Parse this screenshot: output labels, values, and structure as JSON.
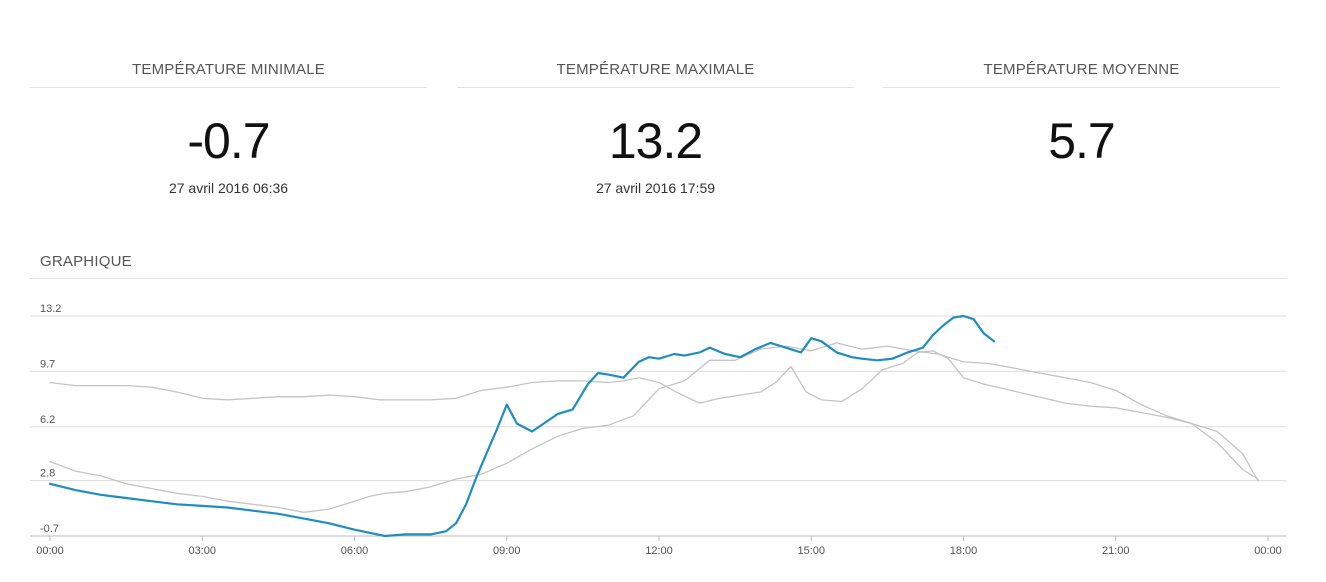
{
  "stats": [
    {
      "label": "TEMPÉRATURE MINIMALE",
      "value": "-0.7",
      "date": "27 avril 2016 06:36"
    },
    {
      "label": "TEMPÉRATURE MAXIMALE",
      "value": "13.2",
      "date": "27 avril 2016 17:59"
    },
    {
      "label": "TEMPÉRATURE MOYENNE",
      "value": "5.7",
      "date": ""
    }
  ],
  "section": {
    "title": "GRAPHIQUE"
  },
  "colors": {
    "today": "#1f8dc1",
    "comparison": "#c4c4c4",
    "grid": "#dcdcdc",
    "axis": "#bbbbbb"
  },
  "chart_data": {
    "type": "line",
    "xlabel": "",
    "ylabel": "",
    "x_unit": "hours",
    "x_range": [
      0,
      24
    ],
    "ylim": [
      -0.7,
      13.2
    ],
    "y_ticks": [
      "13.2",
      "9.7",
      "6.2",
      "2.8",
      "-0.7"
    ],
    "y_tick_values": [
      13.2,
      9.7,
      6.2,
      2.8,
      -0.7
    ],
    "x_ticks": [
      "00:00",
      "03:00",
      "06:00",
      "09:00",
      "12:00",
      "15:00",
      "18:00",
      "21:00",
      "00:00"
    ],
    "x_tick_values": [
      0,
      3,
      6,
      9,
      12,
      15,
      18,
      21,
      24
    ],
    "grid": true,
    "legend": "none",
    "series": [
      {
        "x": [
          0,
          0.5,
          1,
          1.5,
          2,
          2.5,
          3,
          3.5,
          4,
          4.5,
          5,
          5.5,
          6,
          6.3,
          6.6,
          7,
          7.5,
          7.8,
          8,
          8.2,
          8.4,
          8.6,
          8.8,
          9,
          9.2,
          9.5,
          10,
          10.3,
          10.6,
          10.8,
          11,
          11.3,
          11.6,
          11.8,
          12,
          12.3,
          12.5,
          12.8,
          13,
          13.3,
          13.6,
          13.9,
          14.2,
          14.5,
          14.8,
          15,
          15.2,
          15.5,
          15.8,
          16,
          16.3,
          16.6,
          16.9,
          17.2,
          17.4,
          17.6,
          17.8,
          18,
          18.2,
          18.4,
          18.6
        ],
        "y": [
          2.6,
          2.2,
          1.9,
          1.7,
          1.5,
          1.3,
          1.2,
          1.1,
          0.9,
          0.7,
          0.4,
          0.1,
          -0.3,
          -0.5,
          -0.7,
          -0.6,
          -0.6,
          -0.4,
          0.1,
          1.3,
          3.0,
          4.5,
          6.0,
          7.6,
          6.4,
          5.9,
          7.0,
          7.3,
          8.9,
          9.6,
          9.5,
          9.3,
          10.3,
          10.6,
          10.5,
          10.8,
          10.7,
          10.9,
          11.2,
          10.8,
          10.6,
          11.1,
          11.5,
          11.2,
          10.9,
          11.8,
          11.6,
          10.9,
          10.6,
          10.5,
          10.4,
          10.5,
          10.9,
          11.2,
          12.0,
          12.6,
          13.1,
          13.2,
          13.0,
          12.1,
          11.6
        ]
      },
      {
        "x": [
          0,
          0.5,
          1,
          1.5,
          2,
          2.5,
          3,
          3.5,
          4,
          4.5,
          5,
          5.5,
          6,
          6.3,
          6.6,
          7,
          7.5,
          8,
          8.5,
          9,
          9.5,
          10,
          10.5,
          11,
          11.5,
          12,
          12.5,
          13,
          13.5,
          14,
          14.5,
          15,
          15.5,
          16,
          16.5,
          17,
          17.5,
          18,
          18.5,
          19,
          19.5,
          20,
          20.5,
          21,
          21.5,
          22,
          22.5,
          23,
          23.5,
          23.8
        ],
        "y": [
          4.0,
          3.4,
          3.1,
          2.6,
          2.3,
          2.0,
          1.8,
          1.5,
          1.3,
          1.1,
          0.8,
          1.0,
          1.5,
          1.8,
          2.0,
          2.1,
          2.4,
          2.9,
          3.2,
          3.9,
          4.8,
          5.6,
          6.1,
          6.3,
          6.9,
          8.6,
          9.1,
          10.4,
          10.4,
          11.1,
          11.3,
          11.0,
          11.5,
          11.1,
          11.3,
          11.0,
          10.8,
          10.3,
          10.2,
          9.9,
          9.6,
          9.3,
          9.0,
          8.5,
          7.6,
          6.9,
          6.4,
          5.2,
          3.5,
          2.9
        ]
      },
      {
        "x": [
          0,
          0.5,
          1,
          1.5,
          2,
          2.5,
          3,
          3.5,
          4,
          4.5,
          5,
          5.5,
          6,
          6.5,
          7,
          7.5,
          8,
          8.5,
          9,
          9.5,
          10,
          10.5,
          11,
          11.3,
          11.6,
          12,
          12.4,
          12.8,
          13.2,
          13.6,
          14,
          14.3,
          14.6,
          14.9,
          15.2,
          15.6,
          16,
          16.4,
          16.8,
          17.1,
          17.4,
          17.7,
          18,
          18.4,
          18.8,
          19.2,
          19.6,
          20,
          20.5,
          21,
          21.5,
          22,
          22.5,
          23,
          23.5,
          23.8
        ],
        "y": [
          9.0,
          8.8,
          8.8,
          8.8,
          8.7,
          8.4,
          8.0,
          7.9,
          8.0,
          8.1,
          8.1,
          8.2,
          8.1,
          7.9,
          7.9,
          7.9,
          8.0,
          8.5,
          8.7,
          9.0,
          9.1,
          9.1,
          9.0,
          9.1,
          9.3,
          9.0,
          8.3,
          7.7,
          8.0,
          8.2,
          8.4,
          9.0,
          10.0,
          8.4,
          7.9,
          7.8,
          8.6,
          9.8,
          10.2,
          10.9,
          11.0,
          10.5,
          9.3,
          8.9,
          8.6,
          8.3,
          8.0,
          7.7,
          7.5,
          7.4,
          7.1,
          6.8,
          6.4,
          5.9,
          4.5,
          2.8
        ]
      }
    ]
  }
}
